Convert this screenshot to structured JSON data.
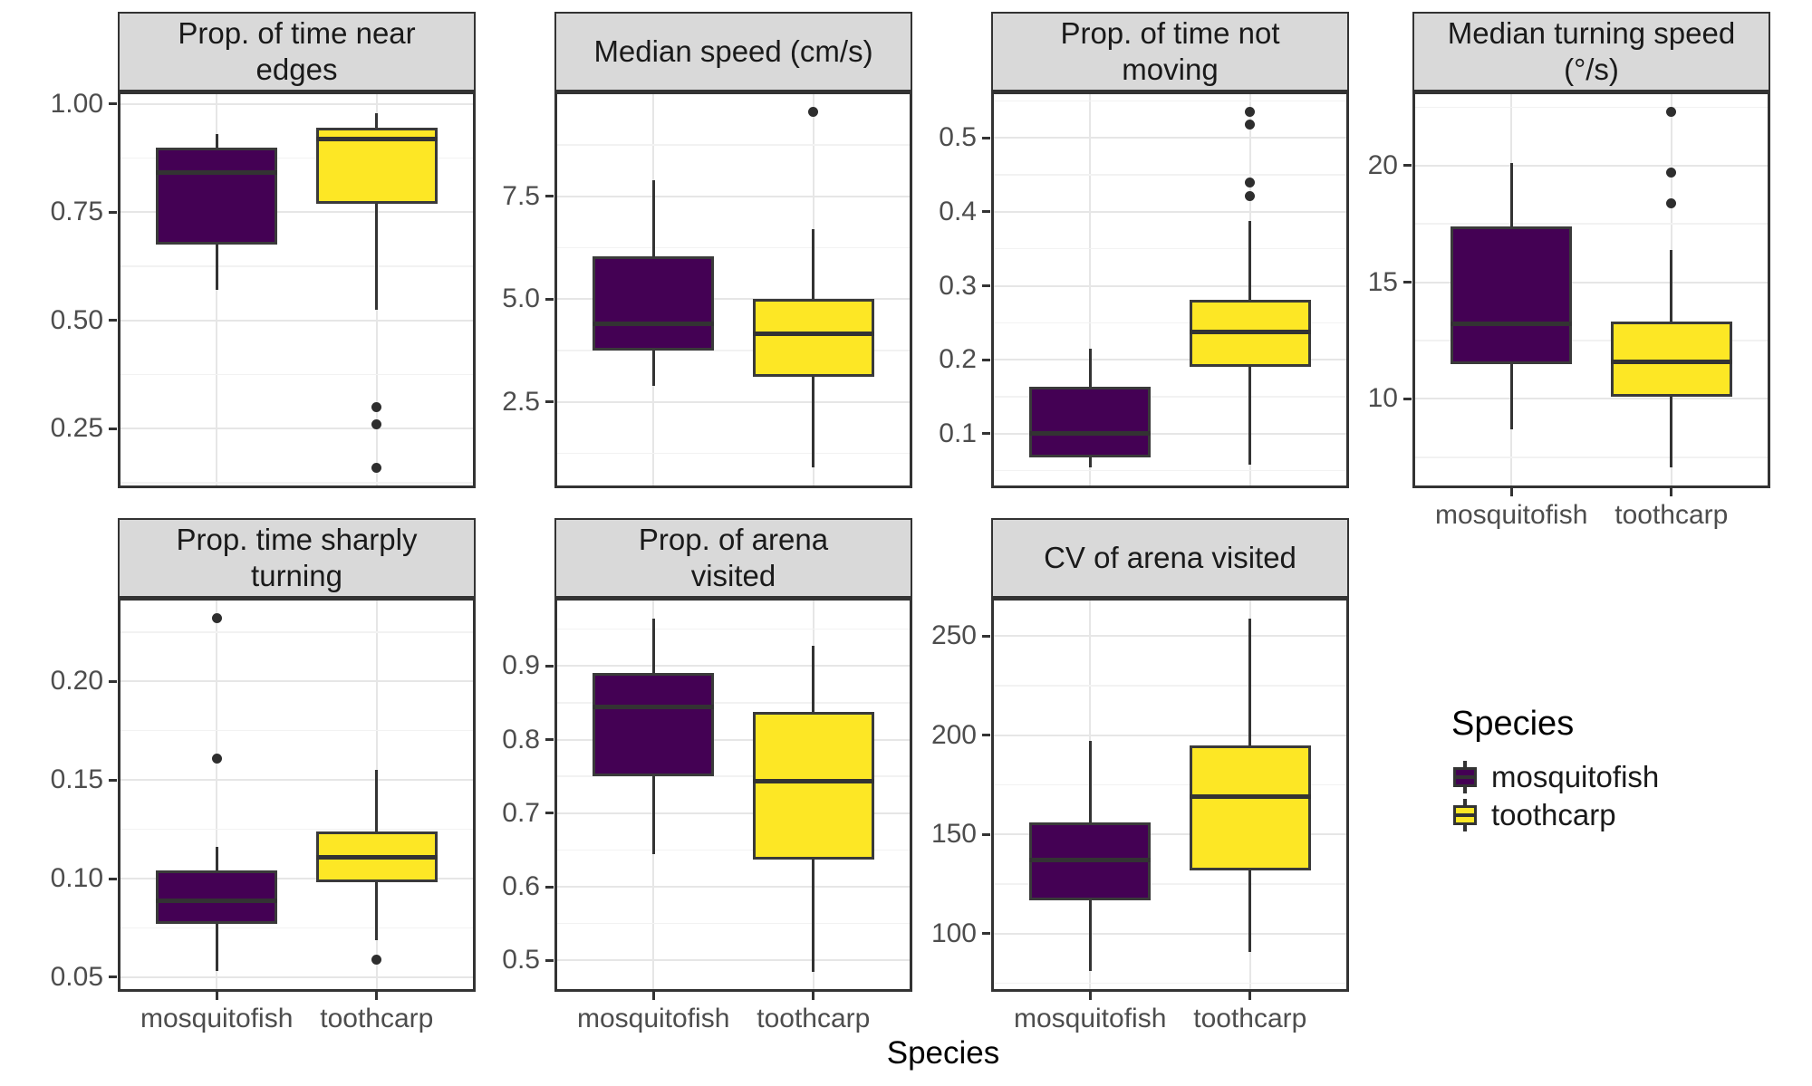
{
  "figure": {
    "x_axis_title": "Species",
    "categories": [
      "mosquitofish",
      "toothcarp"
    ],
    "legend": {
      "title": "Species",
      "items": [
        {
          "label": "mosquitofish",
          "color": "#440154"
        },
        {
          "label": "toothcarp",
          "color": "#FDE725"
        }
      ]
    },
    "colors": {
      "mosquitofish": "#440154",
      "toothcarp": "#FDE725",
      "box_border": "#3a3a3a",
      "strip_bg": "#d9d9d9",
      "grid_major": "#e6e6e6",
      "tick_label": "#4d4d4d"
    }
  },
  "chart_data": [
    {
      "type": "boxplot",
      "title": "Prop. of time near edges",
      "title_lines": [
        "Prop. of time near",
        "edges"
      ],
      "ylim": [
        0.119,
        1.023
      ],
      "yticks": [
        {
          "v": 0.25,
          "label": "0.25"
        },
        {
          "v": 0.5,
          "label": "0.50"
        },
        {
          "v": 0.75,
          "label": "0.75"
        },
        {
          "v": 1.0,
          "label": "1.00"
        }
      ],
      "series": [
        {
          "name": "mosquitofish",
          "color": "#440154",
          "q1": 0.675,
          "median": 0.843,
          "q3": 0.9,
          "whisker_low": 0.57,
          "whisker_high": 0.93,
          "outliers": []
        },
        {
          "name": "toothcarp",
          "color": "#FDE725",
          "q1": 0.77,
          "median": 0.92,
          "q3": 0.945,
          "whisker_low": 0.525,
          "whisker_high": 0.98,
          "outliers": [
            0.3,
            0.26,
            0.16
          ]
        }
      ]
    },
    {
      "type": "boxplot",
      "title": "Median speed (cm/s)",
      "title_lines": [
        "Median speed (cm/s)"
      ],
      "ylim": [
        0.468,
        9.982
      ],
      "yticks": [
        {
          "v": 2.5,
          "label": "2.5"
        },
        {
          "v": 5.0,
          "label": "5.0"
        },
        {
          "v": 7.5,
          "label": "7.5"
        }
      ],
      "series": [
        {
          "name": "mosquitofish",
          "color": "#440154",
          "q1": 3.75,
          "median": 4.4,
          "q3": 6.05,
          "whisker_low": 2.9,
          "whisker_high": 7.9,
          "outliers": []
        },
        {
          "name": "toothcarp",
          "color": "#FDE725",
          "q1": 3.1,
          "median": 4.15,
          "q3": 5.0,
          "whisker_low": 0.9,
          "whisker_high": 6.7,
          "outliers": [
            9.55
          ]
        }
      ]
    },
    {
      "type": "boxplot",
      "title": "Prop. of time not moving",
      "title_lines": [
        "Prop. of time not",
        "moving"
      ],
      "ylim": [
        0.03,
        0.559
      ],
      "yticks": [
        {
          "v": 0.1,
          "label": "0.1"
        },
        {
          "v": 0.2,
          "label": "0.2"
        },
        {
          "v": 0.3,
          "label": "0.3"
        },
        {
          "v": 0.4,
          "label": "0.4"
        },
        {
          "v": 0.5,
          "label": "0.5"
        }
      ],
      "series": [
        {
          "name": "mosquitofish",
          "color": "#440154",
          "q1": 0.068,
          "median": 0.101,
          "q3": 0.163,
          "whisker_low": 0.054,
          "whisker_high": 0.215,
          "outliers": []
        },
        {
          "name": "toothcarp",
          "color": "#FDE725",
          "q1": 0.19,
          "median": 0.237,
          "q3": 0.281,
          "whisker_low": 0.058,
          "whisker_high": 0.388,
          "outliers": [
            0.535,
            0.518,
            0.44,
            0.421
          ]
        }
      ]
    },
    {
      "type": "boxplot",
      "title": "Median turning speed (°/s)",
      "title_lines": [
        "Median turning speed",
        "(°/s)"
      ],
      "ylim": [
        6.29,
        23.06
      ],
      "yticks": [
        {
          "v": 10,
          "label": "10"
        },
        {
          "v": 15,
          "label": "15"
        },
        {
          "v": 20,
          "label": "20"
        }
      ],
      "series": [
        {
          "name": "mosquitofish",
          "color": "#440154",
          "q1": 11.5,
          "median": 13.2,
          "q3": 17.4,
          "whisker_low": 8.7,
          "whisker_high": 20.1,
          "outliers": []
        },
        {
          "name": "toothcarp",
          "color": "#FDE725",
          "q1": 10.1,
          "median": 11.6,
          "q3": 13.3,
          "whisker_low": 7.05,
          "whisker_high": 16.4,
          "outliers": [
            22.3,
            19.7,
            18.4
          ]
        }
      ]
    },
    {
      "type": "boxplot",
      "title": "Prop. time sharply turning",
      "title_lines": [
        "Prop. time sharply",
        "turning"
      ],
      "ylim": [
        0.044,
        0.241
      ],
      "yticks": [
        {
          "v": 0.05,
          "label": "0.05"
        },
        {
          "v": 0.1,
          "label": "0.10"
        },
        {
          "v": 0.15,
          "label": "0.15"
        },
        {
          "v": 0.2,
          "label": "0.20"
        }
      ],
      "series": [
        {
          "name": "mosquitofish",
          "color": "#440154",
          "q1": 0.077,
          "median": 0.089,
          "q3": 0.104,
          "whisker_low": 0.053,
          "whisker_high": 0.116,
          "outliers": [
            0.232,
            0.161
          ]
        },
        {
          "name": "toothcarp",
          "color": "#FDE725",
          "q1": 0.098,
          "median": 0.111,
          "q3": 0.124,
          "whisker_low": 0.069,
          "whisker_high": 0.155,
          "outliers": [
            0.059
          ]
        }
      ]
    },
    {
      "type": "boxplot",
      "title": "Prop. of arena visited",
      "title_lines": [
        "Prop. of arena",
        "visited"
      ],
      "ylim": [
        0.461,
        0.989
      ],
      "yticks": [
        {
          "v": 0.5,
          "label": "0.5"
        },
        {
          "v": 0.6,
          "label": "0.6"
        },
        {
          "v": 0.7,
          "label": "0.7"
        },
        {
          "v": 0.8,
          "label": "0.8"
        },
        {
          "v": 0.9,
          "label": "0.9"
        }
      ],
      "series": [
        {
          "name": "mosquitofish",
          "color": "#440154",
          "q1": 0.75,
          "median": 0.845,
          "q3": 0.89,
          "whisker_low": 0.645,
          "whisker_high": 0.965,
          "outliers": []
        },
        {
          "name": "toothcarp",
          "color": "#FDE725",
          "q1": 0.637,
          "median": 0.743,
          "q3": 0.838,
          "whisker_low": 0.485,
          "whisker_high": 0.928,
          "outliers": []
        }
      ]
    },
    {
      "type": "boxplot",
      "title": "CV of arena visited",
      "title_lines": [
        "CV of arena visited"
      ],
      "ylim": [
        72.1,
        267.9
      ],
      "yticks": [
        {
          "v": 100,
          "label": "100"
        },
        {
          "v": 150,
          "label": "150"
        },
        {
          "v": 200,
          "label": "200"
        },
        {
          "v": 250,
          "label": "250"
        }
      ],
      "series": [
        {
          "name": "mosquitofish",
          "color": "#440154",
          "q1": 117,
          "median": 137,
          "q3": 156,
          "whisker_low": 81,
          "whisker_high": 197,
          "outliers": []
        },
        {
          "name": "toothcarp",
          "color": "#FDE725",
          "q1": 132,
          "median": 169,
          "q3": 195,
          "whisker_low": 91,
          "whisker_high": 259,
          "outliers": []
        }
      ]
    }
  ]
}
